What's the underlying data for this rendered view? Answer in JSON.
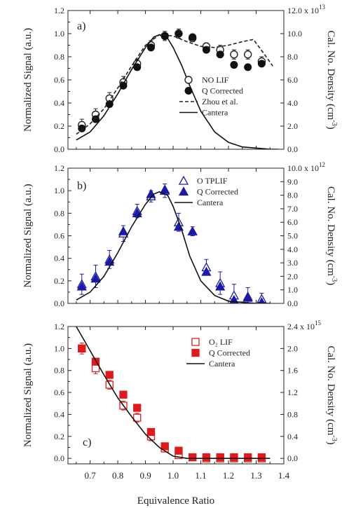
{
  "figure": {
    "xlabel": "Equivalence Ratio",
    "x_ticks": [
      0.7,
      0.8,
      0.9,
      1.0,
      1.1,
      1.2,
      1.3,
      1.4
    ],
    "x_tick_labels": [
      "0.7",
      "0.8",
      "0.9",
      "1.0",
      "1.1",
      "1.2",
      "1.3",
      "1.4"
    ],
    "xlim": [
      0.62,
      1.4
    ]
  },
  "chart_data": [
    {
      "type": "scatter",
      "panel_label": "a)",
      "ylabel": "Normalized Signal (a.u.)",
      "ylabel2": "Cal. No. Density (cm",
      "ylabel2_sup": "-3",
      "ylabel2_close": ")",
      "ylim": [
        0,
        1.2
      ],
      "y_ticks": [
        0,
        0.2,
        0.4,
        0.6,
        0.8,
        1.0,
        1.2
      ],
      "y_tick_labels": [
        "0.0",
        "0.2",
        "0.4",
        "0.6",
        "0.8",
        "1.0",
        "1.2"
      ],
      "y2_tick_labels": [
        "0.0",
        "2.0",
        "4.0",
        "6.0",
        "8.0",
        "10.0",
        "12.0 x 10"
      ],
      "y2_exponent": "13",
      "series": [
        {
          "name": "NO LIF",
          "marker": "open-circle",
          "color": "#222222",
          "x": [
            0.67,
            0.72,
            0.77,
            0.82,
            0.87,
            0.92,
            0.97,
            1.02,
            1.07,
            1.12,
            1.17,
            1.22,
            1.27,
            1.32
          ],
          "y": [
            0.21,
            0.3,
            0.44,
            0.58,
            0.74,
            0.9,
            0.98,
            1.0,
            0.96,
            0.89,
            0.86,
            0.82,
            0.82,
            0.76
          ],
          "err": [
            0.05,
            0.05,
            0.05,
            0.05,
            0.04,
            0.04,
            0.04,
            0.04,
            0.03,
            0.03,
            0.04,
            0.04,
            0.04,
            0.04
          ]
        },
        {
          "name": "Q Corrected",
          "marker": "filled-circle",
          "color": "#111111",
          "x": [
            0.67,
            0.72,
            0.77,
            0.82,
            0.87,
            0.92,
            0.97,
            1.02,
            1.07,
            1.12,
            1.17,
            1.22,
            1.27,
            1.32
          ],
          "y": [
            0.18,
            0.26,
            0.39,
            0.55,
            0.71,
            0.88,
            0.98,
            1.0,
            0.97,
            0.86,
            0.82,
            0.73,
            0.71,
            0.74
          ],
          "err": [
            0,
            0,
            0,
            0,
            0,
            0,
            0,
            0,
            0,
            0,
            0,
            0,
            0,
            0
          ]
        },
        {
          "name": "Zhou et al.",
          "marker": "dashed-line",
          "color": "#222222",
          "x": [
            0.65,
            0.7,
            0.75,
            0.8,
            0.85,
            0.9,
            0.95,
            1.0,
            1.05,
            1.1,
            1.15,
            1.2,
            1.25,
            1.29,
            1.33,
            1.36
          ],
          "y": [
            0.13,
            0.22,
            0.35,
            0.53,
            0.72,
            0.9,
            0.99,
            0.98,
            0.93,
            0.89,
            0.88,
            0.9,
            0.93,
            0.95,
            0.82,
            0.72
          ]
        },
        {
          "name": "Cantera",
          "marker": "solid-line",
          "color": "#111111",
          "x": [
            0.65,
            0.7,
            0.75,
            0.8,
            0.85,
            0.9,
            0.93,
            0.95,
            0.98,
            1.0,
            1.03,
            1.06,
            1.1,
            1.15,
            1.2,
            1.25,
            1.3,
            1.35,
            1.38
          ],
          "y": [
            0.08,
            0.15,
            0.29,
            0.48,
            0.69,
            0.88,
            0.97,
            0.99,
            0.96,
            0.88,
            0.73,
            0.55,
            0.33,
            0.15,
            0.06,
            0.02,
            0.01,
            0.0,
            0.0
          ]
        }
      ]
    },
    {
      "type": "scatter",
      "panel_label": "b)",
      "ylabel": "Normalized Signal (a.u.)",
      "ylabel2": "Cal. No. Density (cm",
      "ylabel2_sup": "-3",
      "ylabel2_close": ")",
      "ylim": [
        0,
        1.2
      ],
      "y_ticks": [
        0,
        0.2,
        0.4,
        0.6,
        0.8,
        1.0,
        1.2
      ],
      "y_tick_labels": [
        "0.0",
        "0.2",
        "0.4",
        "0.6",
        "0.8",
        "1.0",
        "1.2"
      ],
      "y2_tick_labels": [
        "0.0",
        "1.0",
        "2.0",
        "3.0",
        "4.0",
        "5.0",
        "6.0",
        "7.0",
        "8.0",
        "9.0",
        "10.0 x 10"
      ],
      "y2_exponent": "12",
      "y2_max": 10.0,
      "series": [
        {
          "name": "O TPLIF",
          "marker": "open-triangle",
          "color": "#1a1aa6",
          "x": [
            0.67,
            0.72,
            0.77,
            0.82,
            0.87,
            0.92,
            0.97,
            1.02,
            1.07,
            1.12,
            1.17,
            1.22,
            1.27,
            1.32
          ],
          "y": [
            0.17,
            0.24,
            0.39,
            0.62,
            0.82,
            0.95,
            1.0,
            0.72,
            0.64,
            0.32,
            0.18,
            0.07,
            0.06,
            0.04
          ],
          "err": [
            0.09,
            0.1,
            0.08,
            0.07,
            0.06,
            0.05,
            0.06,
            0.08,
            0.04,
            0.07,
            0.1,
            0.1,
            0.08,
            0.05
          ]
        },
        {
          "name": "Q Corrected",
          "marker": "filled-triangle",
          "color": "#1a1aa6",
          "x": [
            0.67,
            0.72,
            0.77,
            0.82,
            0.87,
            0.92,
            0.97,
            1.02,
            1.07,
            1.12,
            1.17,
            1.22,
            1.27,
            1.32
          ],
          "y": [
            0.15,
            0.22,
            0.37,
            0.64,
            0.8,
            0.97,
            1.01,
            0.68,
            0.64,
            0.28,
            0.15,
            0.03,
            0.05,
            0.01
          ],
          "err": [
            0,
            0,
            0,
            0,
            0,
            0,
            0,
            0,
            0,
            0,
            0,
            0,
            0,
            0
          ]
        },
        {
          "name": "Cantera",
          "marker": "solid-line",
          "color": "#111111",
          "x": [
            0.65,
            0.7,
            0.75,
            0.8,
            0.85,
            0.9,
            0.93,
            0.95,
            0.98,
            1.0,
            1.03,
            1.06,
            1.1,
            1.15,
            1.2,
            1.25,
            1.3,
            1.35
          ],
          "y": [
            0.03,
            0.1,
            0.24,
            0.45,
            0.68,
            0.88,
            0.97,
            0.99,
            0.96,
            0.86,
            0.66,
            0.42,
            0.2,
            0.07,
            0.02,
            0.01,
            0.0,
            0.0
          ]
        }
      ]
    },
    {
      "type": "scatter",
      "panel_label": "c)",
      "ylabel": "Normalized Signal (a.u.)",
      "ylabel2": "Cal. No. Density (cm",
      "ylabel2_sup": "-3",
      "ylabel2_close": ")",
      "ylim": [
        -0.05,
        1.2
      ],
      "y_ticks": [
        0,
        0.2,
        0.4,
        0.6,
        0.8,
        1.0,
        1.2
      ],
      "y_tick_labels": [
        "0.0",
        "0.2",
        "0.4",
        "0.6",
        "0.8",
        "1.0",
        "1.2"
      ],
      "y2_tick_labels": [
        "0.0",
        "0.4",
        "0.8",
        "1.2",
        "1.6",
        "2.0",
        "2.4 x 10"
      ],
      "y2_exponent": "15",
      "series": [
        {
          "name": "O₂ LIF",
          "marker": "open-square",
          "color": "#e01a1a",
          "x": [
            0.67,
            0.72,
            0.77,
            0.82,
            0.87,
            0.92,
            0.97,
            1.02,
            1.07,
            1.12,
            1.17,
            1.22,
            1.27,
            1.32
          ],
          "y": [
            1.0,
            0.82,
            0.67,
            0.48,
            0.37,
            0.2,
            0.09,
            0.03,
            0.01,
            0.0,
            0.0,
            0.0,
            0.0,
            0.0
          ],
          "err": [
            0.05,
            0.05,
            0.04,
            0.04,
            0.04,
            0.04,
            0.03,
            0.02,
            0.02,
            0.02,
            0.02,
            0.02,
            0.02,
            0.02
          ]
        },
        {
          "name": "Q Corrected",
          "marker": "filled-square",
          "color": "#e01a1a",
          "x": [
            0.67,
            0.72,
            0.77,
            0.82,
            0.87,
            0.92,
            0.97,
            1.02,
            1.07,
            1.12,
            1.17,
            1.22,
            1.27,
            1.32
          ],
          "y": [
            1.0,
            0.88,
            0.76,
            0.58,
            0.46,
            0.24,
            0.11,
            0.07,
            0.01,
            0.01,
            0.01,
            0.01,
            0.01,
            0.01
          ],
          "err": [
            0,
            0,
            0,
            0,
            0,
            0,
            0,
            0,
            0,
            0,
            0,
            0,
            0,
            0
          ]
        },
        {
          "name": "Cantera",
          "marker": "solid-line",
          "color": "#111111",
          "x": [
            0.65,
            0.7,
            0.75,
            0.8,
            0.85,
            0.9,
            0.95,
            1.0,
            1.05,
            1.08,
            1.12,
            1.2,
            1.3,
            1.35
          ],
          "y": [
            1.2,
            0.98,
            0.76,
            0.55,
            0.38,
            0.22,
            0.1,
            0.02,
            0.0,
            0.0,
            0.0,
            0.0,
            0.0,
            0.0
          ]
        }
      ]
    }
  ]
}
